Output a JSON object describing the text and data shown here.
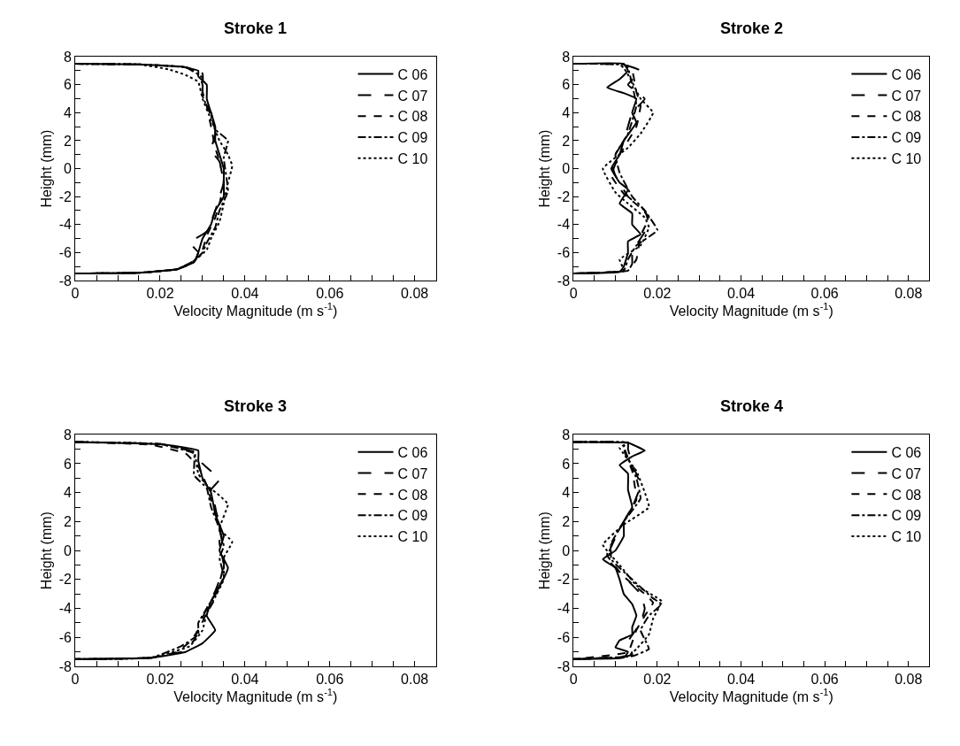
{
  "chart_data": [
    {
      "type": "line",
      "title": "Stroke 1",
      "xlabel": "Velocity Magnitude (m s$^{-1}$)",
      "ylabel": "Height (mm)",
      "legend": "top right",
      "xlim": [
        0,
        0.085
      ],
      "ylim": [
        -8,
        8
      ],
      "xticks": [
        0,
        {
          "value": 0.005,
          "label": null
        },
        {
          "value": 0.01,
          "label": null
        },
        {
          "value": 0.015,
          "label": null
        },
        0.02,
        {
          "value": 0.025,
          "label": null
        },
        {
          "value": 0.03,
          "label": null
        },
        {
          "value": 0.035,
          "label": null
        },
        0.04,
        {
          "value": 0.045,
          "label": null
        },
        {
          "value": 0.05,
          "label": null
        },
        {
          "value": 0.055,
          "label": null
        },
        0.06,
        {
          "value": 0.065,
          "label": null
        },
        {
          "value": 0.07,
          "label": null
        },
        {
          "value": 0.075,
          "label": null
        },
        0.08,
        {
          "value": 0.085,
          "label": null
        }
      ],
      "yticks": [
        -8,
        {
          "value": -7,
          "label": null
        },
        -6,
        {
          "value": -5,
          "label": null
        },
        -4,
        {
          "value": -3,
          "label": null
        },
        -2,
        {
          "value": -1,
          "label": null
        },
        0,
        {
          "value": 1,
          "label": null
        },
        2,
        {
          "value": 3,
          "label": null
        },
        4,
        {
          "value": 5,
          "label": null
        },
        6,
        {
          "value": 7,
          "label": null
        },
        8
      ],
      "series": [
        {
          "name": "C 06",
          "color": "#000000",
          "line_style": "solid",
          "x": [
            0,
            0.015,
            0.025,
            0.029,
            0.029,
            0.031,
            0.031,
            0.032,
            0.033,
            0.033,
            0.034,
            0.035,
            0.035,
            0.035,
            0.033,
            0.032,
            0.03,
            0.029,
            0.028,
            0.024,
            0.015,
            0
          ],
          "values": [
            7.5,
            7.45,
            7.3,
            7.0,
            6.6,
            6.0,
            5.0,
            4.0,
            3.0,
            2.0,
            1.0,
            0,
            -1,
            -2,
            -3,
            -4,
            -5,
            -6,
            -6.7,
            -7.2,
            -7.45,
            -7.5
          ]
        },
        {
          "name": "C 07",
          "color": "#000000",
          "line_style": "longdash",
          "x": [
            0,
            0.015,
            0.026,
            0.029,
            0.03,
            0.03,
            0.032,
            0.033,
            0.032,
            0.034,
            0.035,
            0.034,
            0.033,
            0.031,
            0.027,
            0.029,
            0.028,
            0.024,
            0.015,
            0
          ],
          "values": [
            7.5,
            7.45,
            7.25,
            6.8,
            6.0,
            5.0,
            4.0,
            2.5,
            1.3,
            0.5,
            -1,
            -2,
            -3,
            -4.5,
            -5.3,
            -6.0,
            -6.7,
            -7.2,
            -7.45,
            -7.5
          ]
        },
        {
          "name": "C 08",
          "color": "#000000",
          "line_style": "dashed",
          "x": [
            0,
            0.015,
            0.026,
            0.03,
            0.03,
            0.031,
            0.032,
            0.033,
            0.034,
            0.035,
            0.034,
            0.033,
            0.031,
            0.03,
            0.028,
            0.024,
            0.015,
            0
          ],
          "values": [
            7.5,
            7.45,
            7.25,
            6.8,
            5.5,
            4.5,
            3.0,
            1.5,
            0.5,
            -1,
            -2.5,
            -3.5,
            -4.8,
            -5.8,
            -6.6,
            -7.2,
            -7.45,
            -7.5
          ]
        },
        {
          "name": "C 09",
          "color": "#000000",
          "line_style": "dashdot",
          "x": [
            0,
            0.015,
            0.026,
            0.03,
            0.03,
            0.032,
            0.033,
            0.036,
            0.035,
            0.036,
            0.034,
            0.033,
            0.031,
            0.03,
            0.028,
            0.024,
            0.015,
            0
          ],
          "values": [
            7.5,
            7.45,
            7.25,
            6.5,
            5.2,
            3.8,
            2.8,
            2.0,
            0.8,
            -1.6,
            -3,
            -4.2,
            -5.3,
            -6.0,
            -6.6,
            -7.2,
            -7.45,
            -7.5
          ]
        },
        {
          "name": "C 10",
          "color": "#000000",
          "line_style": "dotted",
          "x": [
            0,
            0.015,
            0.022,
            0.026,
            0.029,
            0.03,
            0.032,
            0.034,
            0.036,
            0.037,
            0.036,
            0.035,
            0.034,
            0.032,
            0.031,
            0.028,
            0.024,
            0.015,
            0
          ],
          "values": [
            7.5,
            7.45,
            7.1,
            6.7,
            6.2,
            5.0,
            3.5,
            2.0,
            1.0,
            0.2,
            -1,
            -2.5,
            -3.8,
            -5.0,
            -5.8,
            -6.6,
            -7.2,
            -7.45,
            -7.5
          ]
        }
      ]
    },
    {
      "type": "line",
      "title": "Stroke 2",
      "xlabel": "Velocity Magnitude (m s$^{-1}$)",
      "ylabel": "Height (mm)",
      "legend": "top right",
      "xlim": [
        0,
        0.085
      ],
      "ylim": [
        -8,
        8
      ],
      "xticks": [
        0,
        {
          "value": 0.005,
          "label": null
        },
        {
          "value": 0.01,
          "label": null
        },
        {
          "value": 0.015,
          "label": null
        },
        0.02,
        {
          "value": 0.025,
          "label": null
        },
        {
          "value": 0.03,
          "label": null
        },
        {
          "value": 0.035,
          "label": null
        },
        0.04,
        {
          "value": 0.045,
          "label": null
        },
        {
          "value": 0.05,
          "label": null
        },
        {
          "value": 0.055,
          "label": null
        },
        0.06,
        {
          "value": 0.065,
          "label": null
        },
        {
          "value": 0.07,
          "label": null
        },
        {
          "value": 0.075,
          "label": null
        },
        0.08,
        {
          "value": 0.085,
          "label": null
        }
      ],
      "yticks": [
        -8,
        {
          "value": -7,
          "label": null
        },
        -6,
        {
          "value": -5,
          "label": null
        },
        -4,
        {
          "value": -3,
          "label": null
        },
        -2,
        {
          "value": -1,
          "label": null
        },
        0,
        {
          "value": 1,
          "label": null
        },
        2,
        {
          "value": 3,
          "label": null
        },
        4,
        {
          "value": 5,
          "label": null
        },
        6,
        {
          "value": 7,
          "label": null
        },
        8
      ],
      "series": [
        {
          "name": "C 06",
          "color": "#000000",
          "line_style": "solid",
          "x": [
            0,
            0.012,
            0.013,
            0.011,
            0.008,
            0.012,
            0.015,
            0.014,
            0.015,
            0.012,
            0.011,
            0.009,
            0.011,
            0.013,
            0.011,
            0.014,
            0.014,
            0.016,
            0.013,
            0.013,
            0.012,
            0.011,
            0
          ],
          "values": [
            7.5,
            7.5,
            7.0,
            6.4,
            5.8,
            5.4,
            5.0,
            4.0,
            3.3,
            2.0,
            1.0,
            0,
            -1,
            -1.5,
            -2.5,
            -3.2,
            -4.0,
            -4.7,
            -5.2,
            -6,
            -7,
            -7.4,
            -7.5
          ]
        },
        {
          "name": "C 07",
          "color": "#000000",
          "line_style": "longdash",
          "x": [
            0,
            0.012,
            0.016,
            0.013,
            0.017,
            0.014,
            0.012,
            0.009,
            0.01,
            0.013,
            0.017,
            0.018,
            0.016,
            0.014,
            0.014,
            0.013,
            0
          ],
          "values": [
            7.5,
            7.45,
            7.0,
            6.0,
            5.0,
            4.0,
            2.0,
            0.5,
            -0.5,
            -2,
            -3,
            -4,
            -5,
            -6,
            -6.8,
            -7.3,
            -7.5
          ]
        },
        {
          "name": "C 08",
          "color": "#000000",
          "line_style": "dashed",
          "x": [
            0,
            0.012,
            0.014,
            0.015,
            0.016,
            0.015,
            0.011,
            0.009,
            0.012,
            0.016,
            0.018,
            0.016,
            0.015,
            0.013,
            0
          ],
          "values": [
            7.5,
            7.45,
            7.0,
            5.5,
            4.5,
            3.0,
            1.0,
            -0.5,
            -1.8,
            -2.8,
            -3.5,
            -4.8,
            -6.5,
            -7.3,
            -7.5
          ]
        },
        {
          "name": "C 09",
          "color": "#000000",
          "line_style": "dashdot",
          "x": [
            0,
            0.012,
            0.013,
            0.014,
            0.015,
            0.013,
            0.01,
            0.011,
            0.014,
            0.017,
            0.02,
            0.015,
            0.013,
            0.012,
            0
          ],
          "values": [
            7.5,
            7.45,
            7.2,
            6.0,
            4.5,
            2.5,
            1.0,
            -0.3,
            -2,
            -3,
            -4.4,
            -5.5,
            -6.5,
            -7.3,
            -7.5
          ]
        },
        {
          "name": "C 10",
          "color": "#000000",
          "line_style": "dotted",
          "x": [
            0,
            0.011,
            0.012,
            0.014,
            0.016,
            0.019,
            0.016,
            0.013,
            0.007,
            0.01,
            0.013,
            0.017,
            0.018,
            0.016,
            0.011,
            0.012,
            0
          ],
          "values": [
            7.5,
            7.45,
            7.2,
            6.2,
            5.0,
            4.0,
            2.5,
            1.5,
            0,
            -1.7,
            -2.5,
            -3.5,
            -4.2,
            -5.5,
            -6.5,
            -7.3,
            -7.5
          ]
        }
      ]
    },
    {
      "type": "line",
      "title": "Stroke 3",
      "xlabel": "Velocity Magnitude (m s$^{-1}$)",
      "ylabel": "Height (mm)",
      "legend": "top right",
      "xlim": [
        0,
        0.085
      ],
      "ylim": [
        -8,
        8
      ],
      "xticks": [
        0,
        {
          "value": 0.005,
          "label": null
        },
        {
          "value": 0.01,
          "label": null
        },
        {
          "value": 0.015,
          "label": null
        },
        0.02,
        {
          "value": 0.025,
          "label": null
        },
        {
          "value": 0.03,
          "label": null
        },
        {
          "value": 0.035,
          "label": null
        },
        0.04,
        {
          "value": 0.045,
          "label": null
        },
        {
          "value": 0.05,
          "label": null
        },
        {
          "value": 0.055,
          "label": null
        },
        0.06,
        {
          "value": 0.065,
          "label": null
        },
        {
          "value": 0.07,
          "label": null
        },
        {
          "value": 0.075,
          "label": null
        },
        0.08,
        {
          "value": 0.085,
          "label": null
        }
      ],
      "yticks": [
        -8,
        {
          "value": -7,
          "label": null
        },
        -6,
        {
          "value": -5,
          "label": null
        },
        -4,
        {
          "value": -3,
          "label": null
        },
        -2,
        {
          "value": -1,
          "label": null
        },
        0,
        {
          "value": 1,
          "label": null
        },
        2,
        {
          "value": 3,
          "label": null
        },
        4,
        {
          "value": 5,
          "label": null
        },
        6,
        {
          "value": 7,
          "label": null
        },
        8
      ],
      "series": [
        {
          "name": "C 06",
          "color": "#000000",
          "line_style": "solid",
          "x": [
            0,
            0.02,
            0.029,
            0.029,
            0.03,
            0.032,
            0.033,
            0.035,
            0.034,
            0.036,
            0.034,
            0.032,
            0.031,
            0.033,
            0.03,
            0.026,
            0.018,
            0
          ],
          "values": [
            7.5,
            7.35,
            6.9,
            6.2,
            5.0,
            4.0,
            2.5,
            1.0,
            0,
            -1.2,
            -2.5,
            -3.5,
            -4.5,
            -5.5,
            -6.4,
            -7.0,
            -7.4,
            -7.5
          ]
        },
        {
          "name": "C 07",
          "color": "#000000",
          "line_style": "longdash",
          "x": [
            0,
            0.02,
            0.028,
            0.03,
            0.034,
            0.032,
            0.033,
            0.034,
            0.035,
            0.035,
            0.033,
            0.031,
            0.029,
            0.028,
            0.025,
            0.018,
            0
          ],
          "values": [
            7.5,
            7.35,
            6.8,
            6.0,
            4.9,
            4.2,
            3.0,
            1.5,
            0,
            -1.2,
            -2.8,
            -4.0,
            -5.3,
            -6.2,
            -7.0,
            -7.4,
            -7.5
          ]
        },
        {
          "name": "C 08",
          "color": "#000000",
          "line_style": "dashed",
          "x": [
            0,
            0.018,
            0.026,
            0.029,
            0.031,
            0.032,
            0.034,
            0.034,
            0.035,
            0.034,
            0.033,
            0.031,
            0.029,
            0.027,
            0.024,
            0.018,
            0
          ],
          "values": [
            7.5,
            7.3,
            6.7,
            5.8,
            4.5,
            3.5,
            2.0,
            0.5,
            -1.0,
            -2.2,
            -3.3,
            -4.3,
            -5.5,
            -6.3,
            -7.0,
            -7.4,
            -7.5
          ]
        },
        {
          "name": "C 09",
          "color": "#000000",
          "line_style": "dashdot",
          "x": [
            0,
            0.02,
            0.028,
            0.028,
            0.031,
            0.032,
            0.034,
            0.035,
            0.034,
            0.035,
            0.033,
            0.031,
            0.029,
            0.029,
            0.025,
            0.018,
            0
          ],
          "values": [
            7.5,
            7.35,
            6.7,
            5.2,
            4.3,
            3.0,
            1.5,
            0.3,
            -0.5,
            -1.8,
            -3.0,
            -4.0,
            -5.0,
            -5.8,
            -6.6,
            -7.4,
            -7.5
          ]
        },
        {
          "name": "C 10",
          "color": "#000000",
          "line_style": "dotted",
          "x": [
            0,
            0.02,
            0.028,
            0.029,
            0.031,
            0.034,
            0.036,
            0.034,
            0.037,
            0.035,
            0.035,
            0.033,
            0.031,
            0.03,
            0.027,
            0.018,
            0
          ],
          "values": [
            7.5,
            7.35,
            6.8,
            5.3,
            4.5,
            3.8,
            3.2,
            1.5,
            0.6,
            -0.5,
            -2.0,
            -3.2,
            -4.3,
            -5.5,
            -6.6,
            -7.4,
            -7.5
          ]
        }
      ]
    },
    {
      "type": "line",
      "title": "Stroke 4",
      "xlabel": "Velocity Magnitude (m s$^{-1}$)",
      "ylabel": "Height (mm)",
      "legend": "top right",
      "xlim": [
        0,
        0.085
      ],
      "ylim": [
        -8,
        8
      ],
      "xticks": [
        0,
        {
          "value": 0.005,
          "label": null
        },
        {
          "value": 0.01,
          "label": null
        },
        {
          "value": 0.015,
          "label": null
        },
        0.02,
        {
          "value": 0.025,
          "label": null
        },
        {
          "value": 0.03,
          "label": null
        },
        {
          "value": 0.035,
          "label": null
        },
        0.04,
        {
          "value": 0.045,
          "label": null
        },
        {
          "value": 0.05,
          "label": null
        },
        {
          "value": 0.055,
          "label": null
        },
        0.06,
        {
          "value": 0.065,
          "label": null
        },
        {
          "value": 0.07,
          "label": null
        },
        {
          "value": 0.075,
          "label": null
        },
        0.08,
        {
          "value": 0.085,
          "label": null
        }
      ],
      "yticks": [
        -8,
        {
          "value": -7,
          "label": null
        },
        -6,
        {
          "value": -5,
          "label": null
        },
        -4,
        {
          "value": -3,
          "label": null
        },
        -2,
        {
          "value": -1,
          "label": null
        },
        0,
        {
          "value": 1,
          "label": null
        },
        2,
        {
          "value": 3,
          "label": null
        },
        4,
        {
          "value": 5,
          "label": null
        },
        6,
        {
          "value": 7,
          "label": null
        },
        8
      ],
      "series": [
        {
          "name": "C 06",
          "color": "#000000",
          "line_style": "solid",
          "x": [
            0,
            0.013,
            0.015,
            0.017,
            0.014,
            0.011,
            0.013,
            0.013,
            0.014,
            0.012,
            0.012,
            0.01,
            0.007,
            0.01,
            0.011,
            0.012,
            0.014,
            0.015,
            0.014,
            0.014,
            0.011,
            0.01,
            0.013,
            0.012,
            0
          ],
          "values": [
            7.5,
            7.45,
            7.2,
            6.9,
            6.5,
            5.9,
            5.3,
            4.2,
            3.0,
            2.0,
            1.0,
            0,
            -0.6,
            -1.2,
            -2,
            -3,
            -3.7,
            -4.5,
            -5.3,
            -5.8,
            -6.2,
            -6.7,
            -7.0,
            -7.4,
            -7.5
          ]
        },
        {
          "name": "C 07",
          "color": "#000000",
          "line_style": "longdash",
          "x": [
            0,
            0.013,
            0.013,
            0.014,
            0.016,
            0.014,
            0.011,
            0.008,
            0.011,
            0.016,
            0.017,
            0.016,
            0.013,
            0.014,
            0
          ],
          "values": [
            7.5,
            7.45,
            7.0,
            6.0,
            4.5,
            3.0,
            1.5,
            -0.5,
            -1.5,
            -3,
            -4,
            -5,
            -6.3,
            -7.2,
            -7.5
          ]
        },
        {
          "name": "C 08",
          "color": "#000000",
          "line_style": "dashed",
          "x": [
            0,
            0.013,
            0.012,
            0.014,
            0.015,
            0.013,
            0.01,
            0.008,
            0.012,
            0.017,
            0.019,
            0.017,
            0.015,
            0.013,
            0
          ],
          "values": [
            7.5,
            7.45,
            7.0,
            5.5,
            3.5,
            2.5,
            1.0,
            -0.3,
            -1.8,
            -3.0,
            -3.6,
            -4.5,
            -5.5,
            -7.0,
            -7.5
          ]
        },
        {
          "name": "C 09",
          "color": "#000000",
          "line_style": "dashdot",
          "x": [
            0,
            0.013,
            0.012,
            0.015,
            0.016,
            0.012,
            0.009,
            0.009,
            0.014,
            0.019,
            0.021,
            0.018,
            0.016,
            0.018,
            0.014,
            0
          ],
          "values": [
            7.5,
            7.45,
            7.2,
            5.0,
            3.6,
            2.0,
            0.5,
            -0.6,
            -2,
            -3.3,
            -3.7,
            -4.5,
            -5.5,
            -6.8,
            -7.3,
            -7.5
          ]
        },
        {
          "name": "C 10",
          "color": "#000000",
          "line_style": "dotted",
          "x": [
            0,
            0.013,
            0.011,
            0.015,
            0.018,
            0.012,
            0.007,
            0.011,
            0.015,
            0.021,
            0.019,
            0.018,
            0.015,
            0.013,
            0
          ],
          "values": [
            7.5,
            7.45,
            7.1,
            5.5,
            3.0,
            1.8,
            0.4,
            -1.0,
            -2.4,
            -3.5,
            -4.7,
            -5.8,
            -6.8,
            -7.3,
            -7.5
          ]
        }
      ]
    }
  ]
}
